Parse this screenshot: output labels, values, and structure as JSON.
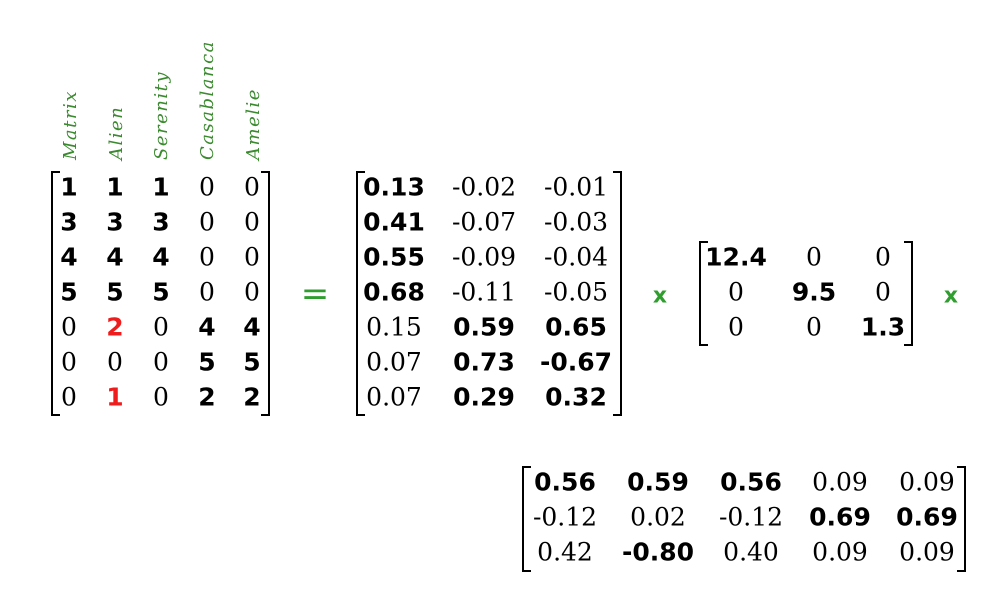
{
  "column_labels": [
    "Matrix",
    "Alien",
    "Serenity",
    "Casablanca",
    "Amelie"
  ],
  "operators": {
    "equals": "=",
    "times_1": "x",
    "times_2": "x"
  },
  "matrices": {
    "A": {
      "rows": [
        [
          {
            "v": "1",
            "b": true
          },
          {
            "v": "1",
            "b": true
          },
          {
            "v": "1",
            "b": true
          },
          {
            "v": "0",
            "b": false
          },
          {
            "v": "0",
            "b": false
          }
        ],
        [
          {
            "v": "3",
            "b": true
          },
          {
            "v": "3",
            "b": true
          },
          {
            "v": "3",
            "b": true
          },
          {
            "v": "0",
            "b": false
          },
          {
            "v": "0",
            "b": false
          }
        ],
        [
          {
            "v": "4",
            "b": true
          },
          {
            "v": "4",
            "b": true
          },
          {
            "v": "4",
            "b": true
          },
          {
            "v": "0",
            "b": false
          },
          {
            "v": "0",
            "b": false
          }
        ],
        [
          {
            "v": "5",
            "b": true
          },
          {
            "v": "5",
            "b": true
          },
          {
            "v": "5",
            "b": true
          },
          {
            "v": "0",
            "b": false
          },
          {
            "v": "0",
            "b": false
          }
        ],
        [
          {
            "v": "0",
            "b": false
          },
          {
            "v": "2",
            "b": true,
            "red": true
          },
          {
            "v": "0",
            "b": false
          },
          {
            "v": "4",
            "b": true
          },
          {
            "v": "4",
            "b": true
          }
        ],
        [
          {
            "v": "0",
            "b": false
          },
          {
            "v": "0",
            "b": false
          },
          {
            "v": "0",
            "b": false
          },
          {
            "v": "5",
            "b": true
          },
          {
            "v": "5",
            "b": true
          }
        ],
        [
          {
            "v": "0",
            "b": false
          },
          {
            "v": "1",
            "b": true,
            "red": true
          },
          {
            "v": "0",
            "b": false
          },
          {
            "v": "2",
            "b": true
          },
          {
            "v": "2",
            "b": true
          }
        ]
      ]
    },
    "U": {
      "rows": [
        [
          {
            "v": "0.13",
            "b": true
          },
          {
            "v": "-0.02",
            "b": false
          },
          {
            "v": "-0.01",
            "b": false
          }
        ],
        [
          {
            "v": "0.41",
            "b": true
          },
          {
            "v": "-0.07",
            "b": false
          },
          {
            "v": "-0.03",
            "b": false
          }
        ],
        [
          {
            "v": "0.55",
            "b": true
          },
          {
            "v": "-0.09",
            "b": false
          },
          {
            "v": "-0.04",
            "b": false
          }
        ],
        [
          {
            "v": "0.68",
            "b": true
          },
          {
            "v": "-0.11",
            "b": false
          },
          {
            "v": "-0.05",
            "b": false
          }
        ],
        [
          {
            "v": "0.15",
            "b": false
          },
          {
            "v": "0.59",
            "b": true
          },
          {
            "v": "0.65",
            "b": true
          }
        ],
        [
          {
            "v": "0.07",
            "b": false
          },
          {
            "v": "0.73",
            "b": true
          },
          {
            "v": "-0.67",
            "b": true
          }
        ],
        [
          {
            "v": "0.07",
            "b": false
          },
          {
            "v": "0.29",
            "b": true
          },
          {
            "v": "0.32",
            "b": true
          }
        ]
      ]
    },
    "S": {
      "rows": [
        [
          {
            "v": "12.4",
            "b": true
          },
          {
            "v": "0",
            "b": false
          },
          {
            "v": "0",
            "b": false
          }
        ],
        [
          {
            "v": "0",
            "b": false
          },
          {
            "v": "9.5",
            "b": true
          },
          {
            "v": "0",
            "b": false
          }
        ],
        [
          {
            "v": "0",
            "b": false
          },
          {
            "v": "0",
            "b": false
          },
          {
            "v": "1.3",
            "b": true
          }
        ]
      ]
    },
    "V": {
      "rows": [
        [
          {
            "v": "0.56",
            "b": true
          },
          {
            "v": "0.59",
            "b": true
          },
          {
            "v": "0.56",
            "b": true
          },
          {
            "v": "0.09",
            "b": false
          },
          {
            "v": "0.09",
            "b": false
          }
        ],
        [
          {
            "v": "-0.12",
            "b": false
          },
          {
            "v": "0.02",
            "b": false
          },
          {
            "v": "-0.12",
            "b": false
          },
          {
            "v": "0.69",
            "b": true
          },
          {
            "v": "0.69",
            "b": true
          }
        ],
        [
          {
            "v": "0.42",
            "b": false
          },
          {
            "v": "-0.80",
            "b": true
          },
          {
            "v": "0.40",
            "b": false
          },
          {
            "v": "0.09",
            "b": false
          },
          {
            "v": "0.09",
            "b": false
          }
        ]
      ]
    }
  },
  "colors": {
    "label_green": "#3a8a2e",
    "operator_green": "#2f9e2f",
    "highlight_red": "#ee1c1c"
  }
}
